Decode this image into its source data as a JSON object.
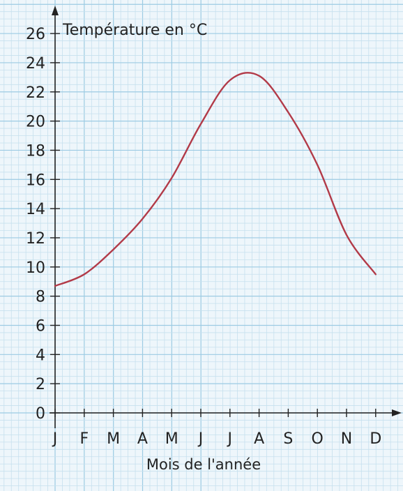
{
  "chart_data": {
    "type": "line",
    "ylabel": "Température en °C",
    "xlabel": "Mois de l'année",
    "categories": [
      "J",
      "F",
      "M",
      "A",
      "M",
      "J",
      "J",
      "A",
      "S",
      "O",
      "N",
      "D"
    ],
    "yticks": [
      0,
      2,
      4,
      6,
      8,
      10,
      12,
      14,
      16,
      18,
      20,
      22,
      24,
      26
    ],
    "ylim": [
      0,
      27
    ],
    "grid": true,
    "series": [
      {
        "values": [
          8.7,
          9.5,
          11.2,
          13.3,
          16.1,
          19.8,
          22.8,
          23.1,
          20.6,
          17.0,
          12.2,
          9.5
        ],
        "color": "#b23a48"
      }
    ],
    "colors": {
      "background": "#eef6fb",
      "grid_minor": "#c6e0ee",
      "grid_major": "#9ccbe3",
      "axis": "#222222"
    }
  }
}
